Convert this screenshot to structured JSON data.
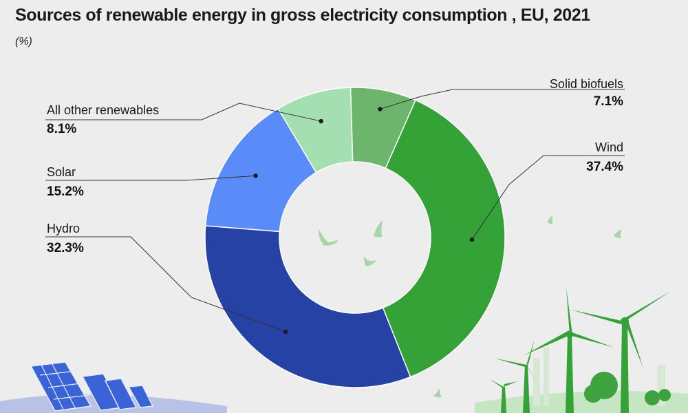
{
  "title": "Sources of renewable energy in gross electricity consumption , EU, 2021",
  "unit_label": "(%)",
  "chart_data": {
    "type": "pie",
    "variant": "donut",
    "title": "Sources of renewable energy in gross electricity consumption , EU, 2021",
    "subtitle": "(%)",
    "slices": [
      {
        "name": "Solid biofuels",
        "value": 7.1,
        "label": "7.1%",
        "color": "#6db56d"
      },
      {
        "name": "Wind",
        "value": 37.4,
        "label": "37.4%",
        "color": "#35a237"
      },
      {
        "name": "Hydro",
        "value": 32.3,
        "label": "32.3%",
        "color": "#2542a4"
      },
      {
        "name": "Solar",
        "value": 15.2,
        "label": "15.2%",
        "color": "#5a8cf9"
      },
      {
        "name": "All other renewables",
        "value": 8.1,
        "label": "8.1%",
        "color": "#a3dfb1"
      }
    ],
    "start": "top, clockwise",
    "legend": "none (callout labels)"
  }
}
